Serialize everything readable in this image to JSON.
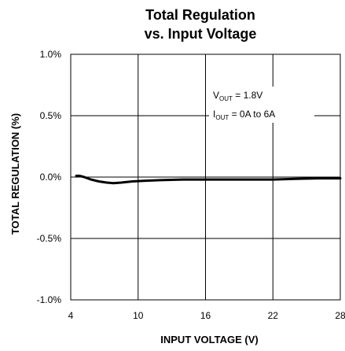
{
  "chart_data": {
    "type": "line",
    "title_line1": "Total Regulation",
    "title_line2": "vs. Input Voltage",
    "xlabel": "INPUT VOLTAGE (V)",
    "ylabel": "TOTAL REGULATION (%)",
    "xlim": [
      4,
      28
    ],
    "ylim": [
      -1.0,
      1.0
    ],
    "x_ticks": [
      4,
      10,
      16,
      22,
      28
    ],
    "x_tick_labels": [
      "4",
      "10",
      "16",
      "22",
      "28"
    ],
    "y_ticks": [
      1.0,
      0.5,
      0.0,
      -0.5,
      -1.0
    ],
    "y_tick_labels": [
      "1.0%",
      "0.5%",
      "0.0%",
      "-0.5%",
      "-1.0%"
    ],
    "grid": true,
    "annotation": {
      "line1": {
        "prefix": "V",
        "sub": "OUT",
        "suffix": " = 1.8V"
      },
      "line2": {
        "prefix": "I",
        "sub": "OUT",
        "suffix": " = 0A to 6A"
      }
    },
    "series": [
      {
        "x": [
          4.5,
          4.8,
          5.2,
          5.8,
          6.5,
          7.2,
          7.8,
          8.5,
          9.5,
          10.5,
          12,
          14,
          16,
          18,
          20,
          22,
          24,
          26,
          28
        ],
        "y": [
          0.01,
          0.01,
          0.0,
          -0.02,
          -0.035,
          -0.045,
          -0.05,
          -0.045,
          -0.035,
          -0.03,
          -0.025,
          -0.02,
          -0.02,
          -0.02,
          -0.02,
          -0.02,
          -0.015,
          -0.01,
          -0.01
        ]
      }
    ]
  },
  "colors": {
    "line": "#000000",
    "grid": "#000000",
    "background": "#ffffff"
  }
}
